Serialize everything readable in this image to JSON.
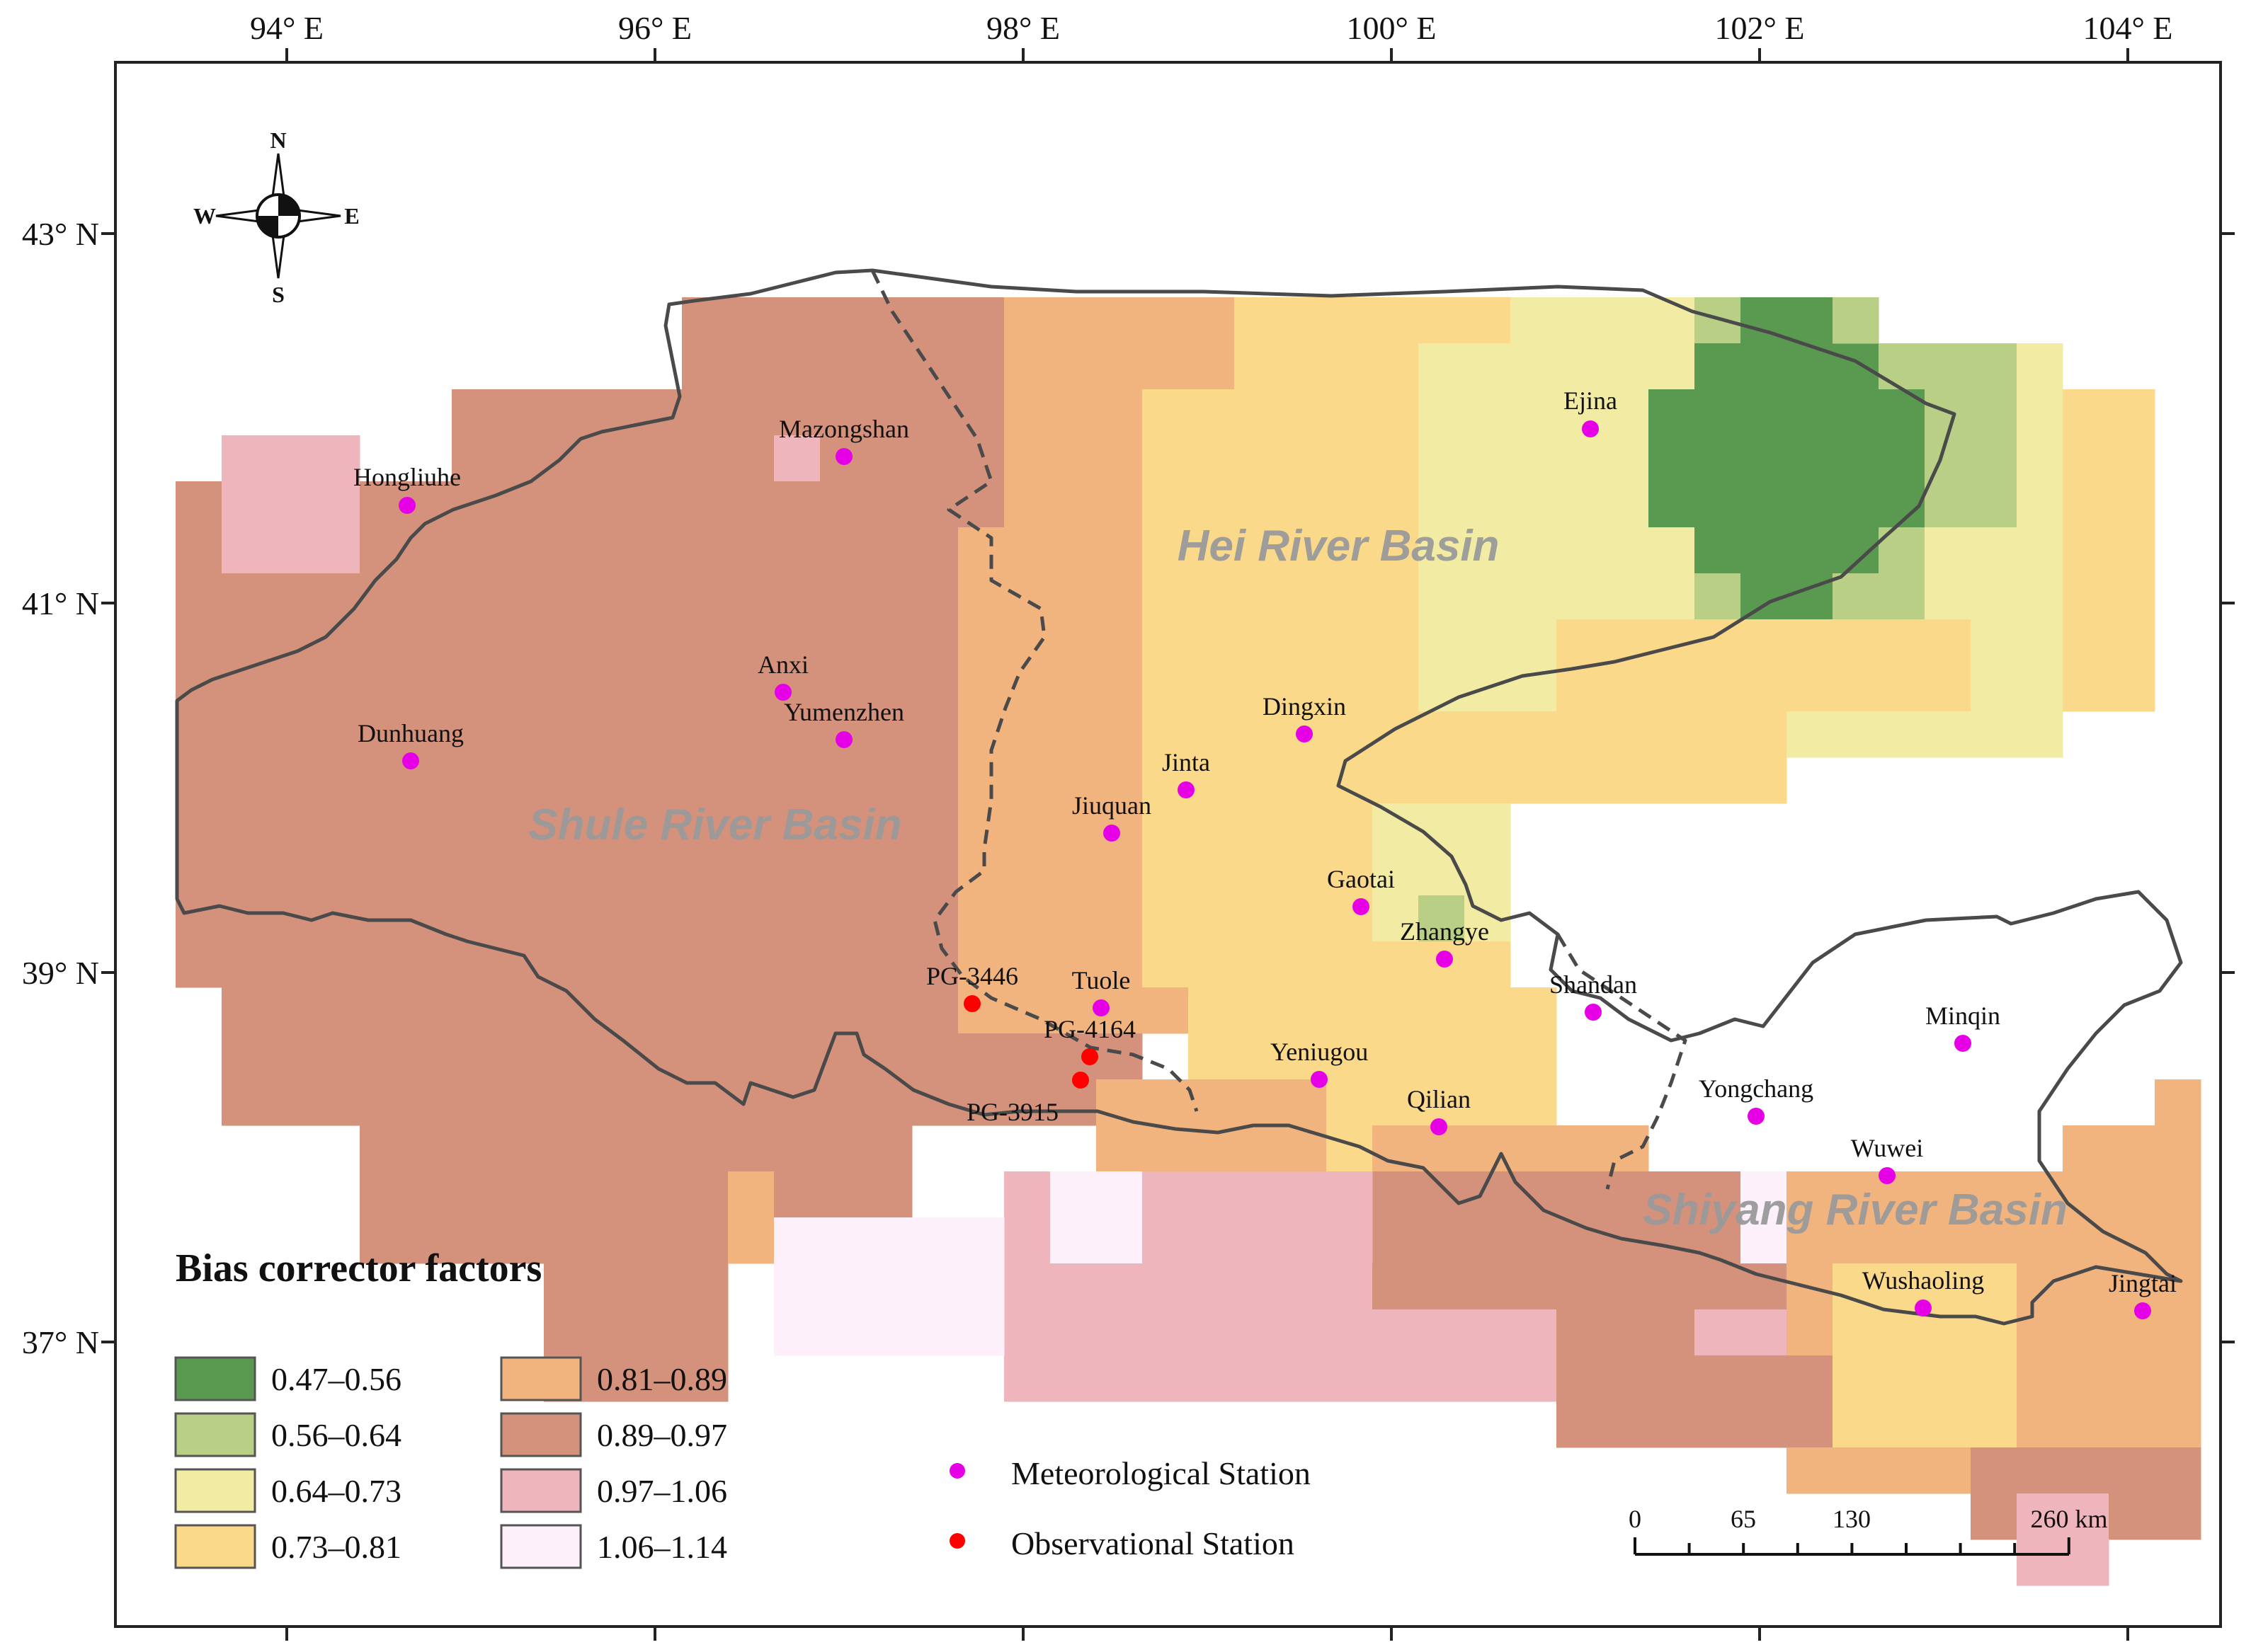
{
  "axes": {
    "longitude_labels": [
      "94° E",
      "96° E",
      "98° E",
      "100° E",
      "102° E",
      "104° E"
    ],
    "latitude_labels": [
      "43° N",
      "41° N",
      "39° N",
      "37° N"
    ]
  },
  "compass": {
    "north": "N",
    "south": "S",
    "east": "E",
    "west": "W"
  },
  "basins": {
    "hei": "Hei River Basin",
    "shule": "Shule River Basin",
    "shiyang": "Shiyang River Basin"
  },
  "legend": {
    "title": "Bias corrector factors",
    "classes": [
      {
        "label": "0.47–0.56",
        "color": "#5a9a50"
      },
      {
        "label": "0.56–0.64",
        "color": "#b8cf85"
      },
      {
        "label": "0.64–0.73",
        "color": "#f1eba3"
      },
      {
        "label": "0.73–0.81",
        "color": "#fbd98b"
      },
      {
        "label": "0.81–0.89",
        "color": "#f2b47f"
      },
      {
        "label": "0.89–0.97",
        "color": "#d4917b"
      },
      {
        "label": "0.97–1.06",
        "color": "#efb5bc"
      },
      {
        "label": "1.06–1.14",
        "color": "#fdf0fb"
      }
    ],
    "station_types": [
      {
        "label": "Meteorological Station",
        "color": "#e600e6"
      },
      {
        "label": "Observational Station",
        "color": "#ff0000"
      }
    ]
  },
  "scale_bar": {
    "labels": [
      "0",
      "65",
      "130",
      "260 km"
    ]
  },
  "stations": {
    "meteorological": [
      "Ejina",
      "Mazongshan",
      "Hongliuhe",
      "Anxi",
      "Yumenzhen",
      "Dunhuang",
      "Dingxin",
      "Jinta",
      "Jiuquan",
      "Gaotai",
      "Zhangye",
      "Shandan",
      "Tuole",
      "Yeniugou",
      "Qilian",
      "Yongchang",
      "Minqin",
      "Wuwei",
      "Wushaoling",
      "Jingtai"
    ],
    "observational": [
      "PG-3446",
      "PG-4164",
      "PG-3915"
    ]
  }
}
